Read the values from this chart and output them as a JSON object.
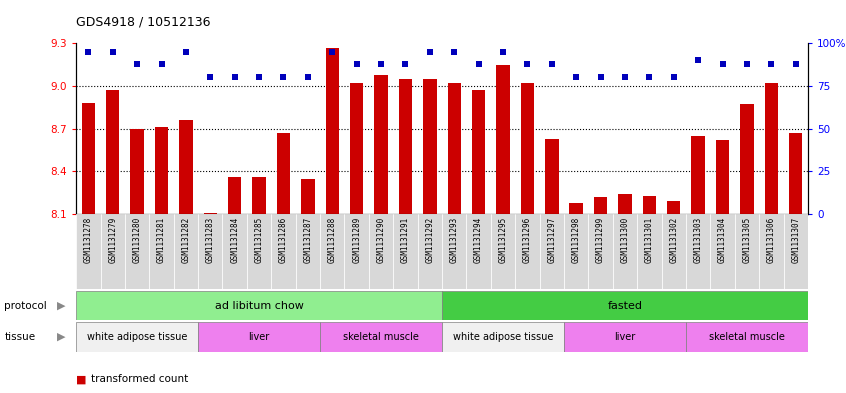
{
  "title": "GDS4918 / 10512136",
  "samples": [
    "GSM1131278",
    "GSM1131279",
    "GSM1131280",
    "GSM1131281",
    "GSM1131282",
    "GSM1131283",
    "GSM1131284",
    "GSM1131285",
    "GSM1131286",
    "GSM1131287",
    "GSM1131288",
    "GSM1131289",
    "GSM1131290",
    "GSM1131291",
    "GSM1131292",
    "GSM1131293",
    "GSM1131294",
    "GSM1131295",
    "GSM1131296",
    "GSM1131297",
    "GSM1131298",
    "GSM1131299",
    "GSM1131300",
    "GSM1131301",
    "GSM1131302",
    "GSM1131303",
    "GSM1131304",
    "GSM1131305",
    "GSM1131306",
    "GSM1131307"
  ],
  "red_values": [
    8.88,
    8.97,
    8.7,
    8.71,
    8.76,
    8.11,
    8.36,
    8.36,
    8.67,
    8.35,
    9.27,
    9.02,
    9.08,
    9.05,
    9.05,
    9.02,
    8.97,
    9.15,
    9.02,
    8.63,
    8.18,
    8.22,
    8.24,
    8.23,
    8.19,
    8.65,
    8.62,
    8.87,
    9.02,
    8.67
  ],
  "blue_values": [
    95,
    95,
    88,
    88,
    95,
    80,
    80,
    80,
    80,
    80,
    95,
    88,
    88,
    88,
    95,
    95,
    88,
    95,
    88,
    88,
    80,
    80,
    80,
    80,
    80,
    90,
    88,
    88,
    88,
    88
  ],
  "ylim_left": [
    8.1,
    9.3
  ],
  "ylim_right": [
    0,
    100
  ],
  "yticks_left": [
    8.1,
    8.4,
    8.7,
    9.0,
    9.3
  ],
  "yticks_right": [
    0,
    25,
    50,
    75,
    100
  ],
  "grid_lines": [
    8.4,
    8.7,
    9.0
  ],
  "protocol_groups": [
    {
      "label": "ad libitum chow",
      "start": 0,
      "end": 15,
      "color": "#90EE90"
    },
    {
      "label": "fasted",
      "start": 15,
      "end": 30,
      "color": "#44CC44"
    }
  ],
  "tissue_groups": [
    {
      "label": "white adipose tissue",
      "start": 0,
      "end": 5,
      "color": "#f0f0f0"
    },
    {
      "label": "liver",
      "start": 5,
      "end": 10,
      "color": "#EE80EE"
    },
    {
      "label": "skeletal muscle",
      "start": 10,
      "end": 15,
      "color": "#EE80EE"
    },
    {
      "label": "white adipose tissue",
      "start": 15,
      "end": 20,
      "color": "#f0f0f0"
    },
    {
      "label": "liver",
      "start": 20,
      "end": 25,
      "color": "#EE80EE"
    },
    {
      "label": "skeletal muscle",
      "start": 25,
      "end": 30,
      "color": "#EE80EE"
    }
  ],
  "bar_color": "#CC0000",
  "dot_color": "#0000BB",
  "bar_width": 0.55
}
